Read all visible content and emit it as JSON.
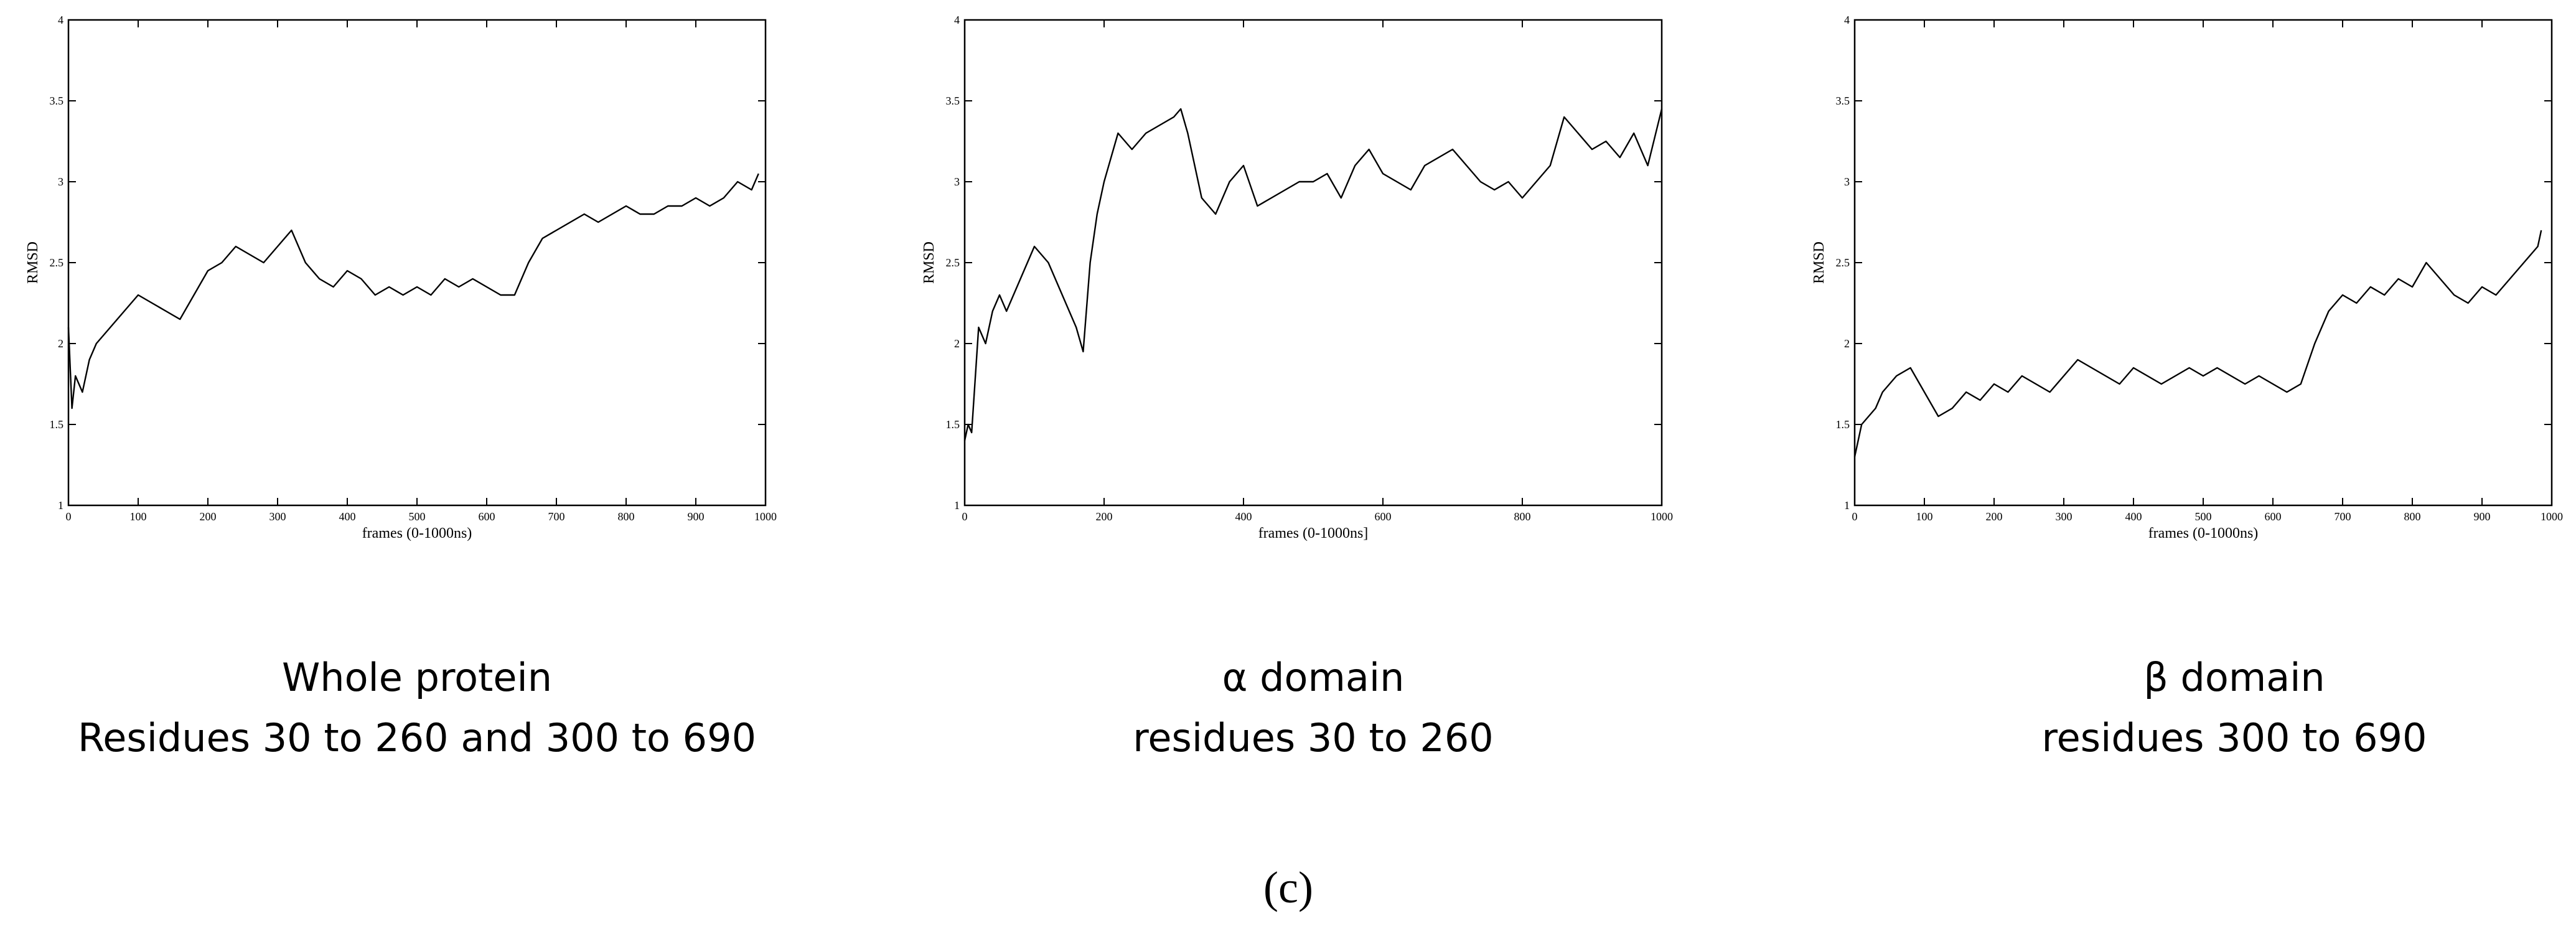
{
  "chart_data": [
    {
      "type": "line",
      "xlabel": "frames (0-1000ns)",
      "ylabel": "RMSD",
      "xlim": [
        0,
        1000
      ],
      "ylim": [
        1,
        4
      ],
      "xticks": [
        0,
        100,
        200,
        300,
        400,
        500,
        600,
        700,
        800,
        900,
        1000
      ],
      "xtick_labels": [
        "0",
        "100",
        "200",
        "300",
        "400",
        "500",
        "600",
        "700",
        "800",
        "900",
        "1000"
      ],
      "yticks": [
        1,
        1.5,
        2,
        2.5,
        3,
        3.5,
        4
      ],
      "ytick_labels": [
        "1",
        "1.5",
        "2",
        "2.5",
        "3",
        "3.5",
        "4"
      ],
      "grid": false,
      "series": [
        {
          "x": [
            0,
            5,
            10,
            20,
            30,
            40,
            50,
            60,
            80,
            100,
            120,
            140,
            160,
            180,
            200,
            220,
            240,
            260,
            280,
            300,
            320,
            340,
            360,
            380,
            400,
            420,
            440,
            460,
            480,
            500,
            520,
            540,
            560,
            580,
            600,
            620,
            640,
            660,
            680,
            700,
            720,
            740,
            760,
            780,
            800,
            820,
            840,
            860,
            880,
            900,
            920,
            940,
            960,
            980,
            990
          ],
          "values": [
            2.1,
            1.6,
            1.8,
            1.7,
            1.9,
            2.0,
            2.05,
            2.1,
            2.2,
            2.3,
            2.25,
            2.2,
            2.15,
            2.3,
            2.45,
            2.5,
            2.6,
            2.55,
            2.5,
            2.6,
            2.7,
            2.5,
            2.4,
            2.35,
            2.45,
            2.4,
            2.3,
            2.35,
            2.3,
            2.35,
            2.3,
            2.4,
            2.35,
            2.4,
            2.35,
            2.3,
            2.3,
            2.5,
            2.65,
            2.7,
            2.75,
            2.8,
            2.75,
            2.8,
            2.85,
            2.8,
            2.8,
            2.85,
            2.85,
            2.9,
            2.85,
            2.9,
            3.0,
            2.95,
            3.05
          ]
        }
      ]
    },
    {
      "type": "line",
      "xlabel": "frames (0-1000ns]",
      "ylabel": "RMSD",
      "xlim": [
        0,
        1000
      ],
      "ylim": [
        1,
        4
      ],
      "xticks": [
        0,
        200,
        400,
        600,
        800,
        1000
      ],
      "xtick_labels": [
        "0",
        "200",
        "400",
        "600",
        "800",
        "1000"
      ],
      "yticks": [
        1,
        1.5,
        2,
        2.5,
        3,
        3.5,
        4
      ],
      "ytick_labels": [
        "1",
        "1.5",
        "2",
        "2.5",
        "3",
        "3.5",
        "4"
      ],
      "grid": false,
      "series": [
        {
          "x": [
            0,
            5,
            10,
            20,
            30,
            40,
            50,
            60,
            80,
            100,
            120,
            140,
            160,
            170,
            180,
            190,
            200,
            220,
            240,
            260,
            280,
            300,
            310,
            320,
            340,
            360,
            380,
            400,
            420,
            440,
            460,
            480,
            500,
            520,
            540,
            560,
            580,
            600,
            620,
            640,
            660,
            680,
            700,
            720,
            740,
            760,
            780,
            800,
            820,
            840,
            860,
            880,
            900,
            920,
            940,
            960,
            980,
            1000
          ],
          "values": [
            1.4,
            1.5,
            1.45,
            2.1,
            2.0,
            2.2,
            2.3,
            2.2,
            2.4,
            2.6,
            2.5,
            2.3,
            2.1,
            1.95,
            2.5,
            2.8,
            3.0,
            3.3,
            3.2,
            3.3,
            3.35,
            3.4,
            3.45,
            3.3,
            2.9,
            2.8,
            3.0,
            3.1,
            2.85,
            2.9,
            2.95,
            3.0,
            3.0,
            3.05,
            2.9,
            3.1,
            3.2,
            3.05,
            3.0,
            2.95,
            3.1,
            3.15,
            3.2,
            3.1,
            3.0,
            2.95,
            3.0,
            2.9,
            3.0,
            3.1,
            3.4,
            3.3,
            3.2,
            3.25,
            3.15,
            3.3,
            3.1,
            3.45
          ]
        }
      ]
    },
    {
      "type": "line",
      "xlabel": "frames (0-1000ns)",
      "ylabel": "RMSD",
      "xlim": [
        0,
        1000
      ],
      "ylim": [
        1,
        4
      ],
      "xticks": [
        0,
        100,
        200,
        300,
        400,
        500,
        600,
        700,
        800,
        900,
        1000
      ],
      "xtick_labels": [
        "0",
        "100",
        "200",
        "300",
        "400",
        "500",
        "600",
        "700",
        "800",
        "900",
        "1000"
      ],
      "yticks": [
        1,
        1.5,
        2,
        2.5,
        3,
        3.5,
        4
      ],
      "ytick_labels": [
        "1",
        "1.5",
        "2",
        "2.5",
        "3",
        "3.5",
        "4"
      ],
      "grid": false,
      "series": [
        {
          "x": [
            0,
            5,
            10,
            20,
            30,
            40,
            50,
            60,
            80,
            100,
            120,
            140,
            160,
            180,
            200,
            220,
            240,
            260,
            280,
            300,
            320,
            340,
            360,
            380,
            400,
            420,
            440,
            460,
            480,
            500,
            520,
            540,
            560,
            580,
            600,
            620,
            640,
            660,
            680,
            700,
            720,
            740,
            760,
            780,
            800,
            820,
            840,
            860,
            880,
            900,
            920,
            940,
            960,
            980,
            985
          ],
          "values": [
            1.3,
            1.4,
            1.5,
            1.55,
            1.6,
            1.7,
            1.75,
            1.8,
            1.85,
            1.7,
            1.55,
            1.6,
            1.7,
            1.65,
            1.75,
            1.7,
            1.8,
            1.75,
            1.7,
            1.8,
            1.9,
            1.85,
            1.8,
            1.75,
            1.85,
            1.8,
            1.75,
            1.8,
            1.85,
            1.8,
            1.85,
            1.8,
            1.75,
            1.8,
            1.75,
            1.7,
            1.75,
            2.0,
            2.2,
            2.3,
            2.25,
            2.35,
            2.3,
            2.4,
            2.35,
            2.5,
            2.4,
            2.3,
            2.25,
            2.35,
            2.3,
            2.4,
            2.5,
            2.6,
            2.7
          ]
        }
      ]
    }
  ],
  "captions": [
    {
      "line1": "Whole protein",
      "line2": "Residues 30 to 260 and 300 to 690"
    },
    {
      "line1": "α domain",
      "line2": "residues 30 to 260"
    },
    {
      "line1": "β domain",
      "line2": "residues 300 to 690"
    }
  ],
  "panel_label": "(c)"
}
